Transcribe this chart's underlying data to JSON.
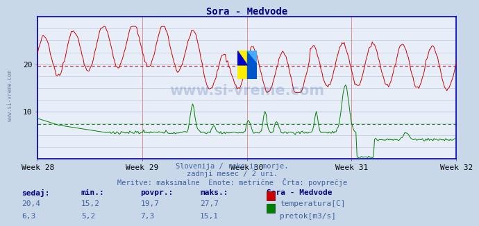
{
  "title": "Sora - Medvode",
  "title_color": "#000080",
  "bg_color": "#c8d8e8",
  "plot_bg_color": "#e8eef8",
  "xlabel_weeks": [
    "Week 28",
    "Week 29",
    "Week 30",
    "Week 31",
    "Week 32"
  ],
  "ylim": [
    0,
    30
  ],
  "yticks": [
    10,
    20
  ],
  "temp_color": "#cc0000",
  "flow_color": "#008000",
  "avg_temp": 19.7,
  "avg_flow": 7.3,
  "watermark": "www.si-vreme.com",
  "subtitle1": "Slovenija / reke in morje.",
  "subtitle2": "zadnji mesec / 2 uri.",
  "subtitle3": "Meritve: maksimalne  Enote: metrične  Črta: povprečje",
  "subtitle_color": "#4060a0",
  "table_header": [
    "sedaj:",
    "min.:",
    "povpr.:",
    "maks.:",
    "Sora - Medvode"
  ],
  "table_color": "#000080",
  "row1": [
    "20,4",
    "15,2",
    "19,7",
    "27,7",
    "temperatura[C]"
  ],
  "row2": [
    "6,3",
    "5,2",
    "7,3",
    "15,1",
    "pretok[m3/s]"
  ],
  "grid_color": "#b0c0d8",
  "vgrid_color": "#e08080",
  "axis_color": "#0000cc",
  "n_points": 360
}
